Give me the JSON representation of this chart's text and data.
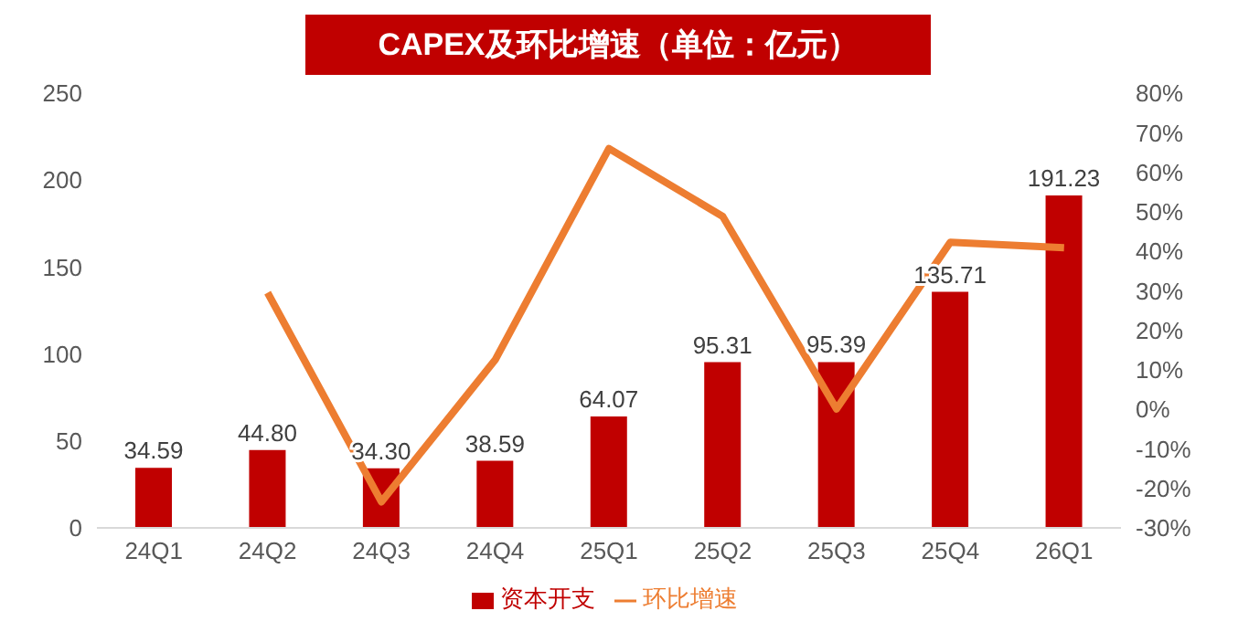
{
  "chart_data": {
    "type": "bar",
    "title": "CAPEX及环比增速（单位：亿元）",
    "categories": [
      "24Q1",
      "24Q2",
      "24Q3",
      "24Q4",
      "25Q1",
      "25Q2",
      "25Q3",
      "25Q4",
      "26Q1"
    ],
    "series": [
      {
        "name": "资本开支",
        "color": "#c00000",
        "values": [
          34.59,
          44.8,
          34.3,
          38.59,
          64.07,
          95.31,
          95.39,
          135.71,
          191.23
        ],
        "value_labels": [
          "34.59",
          "44.80",
          "34.30",
          "38.59",
          "64.07",
          "95.31",
          "95.39",
          "135.71",
          "191.23"
        ]
      },
      {
        "name": "环比增速",
        "type": "line",
        "axis": "y2",
        "color": "#ed7d31",
        "values": [
          null,
          29.5,
          -23.4,
          12.5,
          66.0,
          48.8,
          0.1,
          42.3,
          40.9
        ]
      }
    ],
    "ylim": [
      0,
      250
    ],
    "yticks": [
      0,
      50,
      100,
      150,
      200,
      250
    ],
    "y2lim": [
      -30,
      80
    ],
    "y2ticks": [
      {
        "value": -30,
        "label": "-30%"
      },
      {
        "value": -20,
        "label": "-20%"
      },
      {
        "value": -10,
        "label": "-10%"
      },
      {
        "value": 0,
        "label": "0%"
      },
      {
        "value": 10,
        "label": "10%"
      },
      {
        "value": 20,
        "label": "20%"
      },
      {
        "value": 30,
        "label": "30%"
      },
      {
        "value": 40,
        "label": "40%"
      },
      {
        "value": 50,
        "label": "50%"
      },
      {
        "value": 60,
        "label": "60%"
      },
      {
        "value": 70,
        "label": "70%"
      },
      {
        "value": 80,
        "label": "80%"
      }
    ],
    "grid": false,
    "legend": "bottom",
    "marker": "none",
    "line_style": "solid"
  }
}
